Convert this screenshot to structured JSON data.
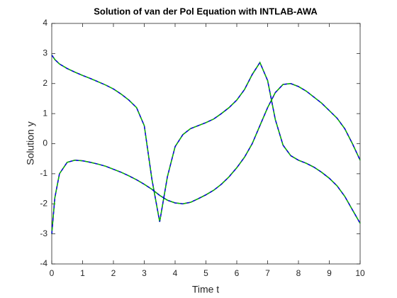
{
  "chart_data": {
    "type": "line",
    "title": "Solution of van der Pol Equation with INTLAB-AWA",
    "x_label": "Time t",
    "y_label": "Solution y",
    "x": [
      0,
      0.1,
      0.25,
      0.5,
      0.75,
      1,
      1.25,
      1.5,
      1.75,
      2,
      2.25,
      2.5,
      2.75,
      3,
      3.25,
      3.5,
      3.75,
      4,
      4.25,
      4.5,
      4.75,
      5,
      5.25,
      5.5,
      5.75,
      6,
      6.25,
      6.5,
      6.75,
      7,
      7.25,
      7.5,
      7.75,
      8,
      8.25,
      8.5,
      8.75,
      9,
      9.25,
      9.5,
      9.75,
      10
    ],
    "series": [
      {
        "color": "#000000",
        "dash_colors": [
          "#0000ff",
          "#00cc00"
        ],
        "values": [
          2.95,
          2.8,
          2.65,
          2.5,
          2.38,
          2.27,
          2.17,
          2.06,
          1.95,
          1.82,
          1.65,
          1.45,
          1.2,
          0.6,
          -1.2,
          -2.6,
          -1.1,
          -0.1,
          0.3,
          0.5,
          0.6,
          0.7,
          0.82,
          1.0,
          1.2,
          1.45,
          1.8,
          2.3,
          2.7,
          2.1,
          0.8,
          -0.05,
          -0.4,
          -0.55,
          -0.65,
          -0.78,
          -0.95,
          -1.15,
          -1.4,
          -1.75,
          -2.2,
          -2.65
        ]
      },
      {
        "color": "#000000",
        "dash_colors": [
          "#0000ff",
          "#00cc00"
        ],
        "values": [
          -3.0,
          -1.8,
          -1.0,
          -0.62,
          -0.55,
          -0.57,
          -0.62,
          -0.68,
          -0.75,
          -0.85,
          -0.95,
          -1.07,
          -1.2,
          -1.35,
          -1.52,
          -1.72,
          -1.88,
          -1.97,
          -2.0,
          -1.95,
          -1.83,
          -1.7,
          -1.55,
          -1.35,
          -1.1,
          -0.8,
          -0.45,
          0.0,
          0.6,
          1.2,
          1.7,
          1.97,
          2.0,
          1.9,
          1.75,
          1.55,
          1.35,
          1.1,
          0.85,
          0.5,
          0.0,
          -0.55
        ]
      }
    ],
    "xlim": [
      0,
      10
    ],
    "xticks": [
      0,
      1,
      2,
      3,
      4,
      5,
      6,
      7,
      8,
      9,
      10
    ],
    "ylim": [
      -4,
      4
    ],
    "yticks": [
      -4,
      -3,
      -2,
      -1,
      0,
      1,
      2,
      3,
      4
    ],
    "grid": false
  }
}
